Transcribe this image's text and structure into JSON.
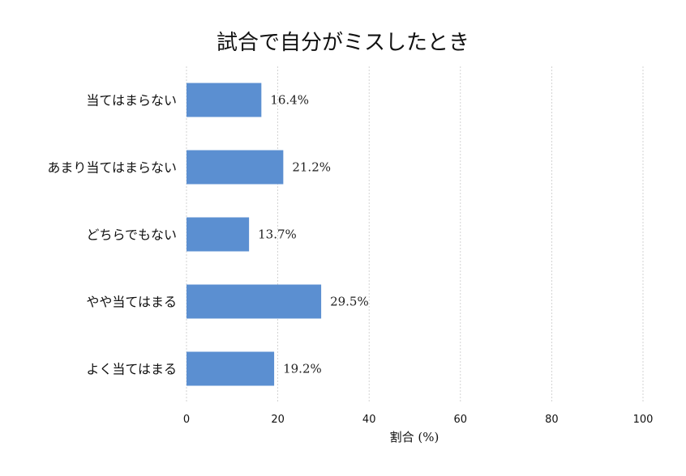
{
  "chart_data": {
    "type": "bar",
    "orientation": "horizontal",
    "title": "試合で自分がミスしたとき",
    "xlabel": "割合 (%)",
    "ylabel": "",
    "xlim": [
      0,
      100
    ],
    "x_ticks": [
      0,
      20,
      40,
      60,
      80,
      100
    ],
    "grid": true,
    "categories": [
      "当てはまらない",
      "あまり当てはまらない",
      "どちらでもない",
      "やや当てはまる",
      "よく当てはまる"
    ],
    "values": [
      16.4,
      21.2,
      13.7,
      29.5,
      19.2
    ],
    "data_labels": [
      "16.4%",
      "21.2%",
      "13.7%",
      "29.5%",
      "19.2%"
    ],
    "bar_color": "#5b8fd1"
  }
}
